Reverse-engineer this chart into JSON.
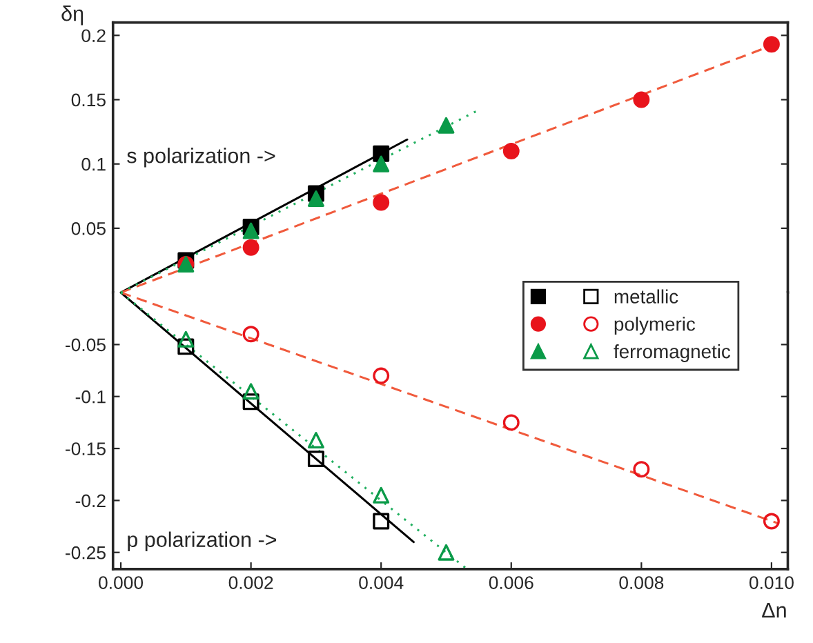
{
  "chart_data": [
    {
      "type": "scatter",
      "ylabel": "δη",
      "annotations": [
        "s polarization ->"
      ],
      "xlim": [
        -0.00012,
        0.01025
      ],
      "ylim": [
        0,
        0.21
      ],
      "yticks": [
        0.05,
        0.1,
        0.15,
        0.2
      ],
      "tick_labels": "y",
      "legend": "bottom right",
      "grid": false,
      "series": [
        {
          "name": "metallic",
          "marker": "square",
          "color": "#000000",
          "x": [
            0.001,
            0.002,
            0.003,
            0.004
          ],
          "values": [
            0.025,
            0.051,
            0.077,
            0.108
          ]
        },
        {
          "name": "polymeric",
          "marker": "circle",
          "color": "#e8141c",
          "x": [
            0.001,
            0.002,
            0.004,
            0.006,
            0.008,
            0.01
          ],
          "values": [
            0.022,
            0.035,
            0.07,
            0.11,
            0.15,
            0.193
          ]
        },
        {
          "name": "ferromagnetic",
          "marker": "triangle",
          "color": "#0a9a48",
          "x": [
            0.001,
            0.002,
            0.003,
            0.004,
            0.005
          ],
          "values": [
            0.022,
            0.048,
            0.073,
            0.1,
            0.13
          ]
        },
        {
          "type": "line",
          "line_style": "solid",
          "color": "#000000",
          "x": [
            0,
            0.0044
          ],
          "values": [
            0,
            0.119
          ]
        },
        {
          "type": "line",
          "line_style": "dashed",
          "color": "#f05a3c",
          "x": [
            0,
            0.0101
          ],
          "values": [
            0,
            0.194
          ]
        },
        {
          "type": "line",
          "line_style": "dotted",
          "color": "#22b060",
          "x": [
            0,
            0.0055
          ],
          "values": [
            0,
            0.142
          ]
        }
      ]
    },
    {
      "type": "scatter",
      "xlabel": "Δn",
      "annotations": [
        "p polarization ->"
      ],
      "xlim": [
        -0.00012,
        0.01025
      ],
      "ylim": [
        -0.266,
        0
      ],
      "xticks": [
        {
          "value": 0,
          "label": "0.000"
        },
        {
          "value": 0.002,
          "label": "0.002"
        },
        {
          "value": 0.004,
          "label": "0.004"
        },
        {
          "value": 0.006,
          "label": "0.006"
        },
        {
          "value": 0.008,
          "label": "0.008"
        },
        {
          "value": 0.01,
          "label": "0.010"
        }
      ],
      "yticks": [
        -0.05,
        -0.1,
        -0.15,
        -0.2,
        -0.25
      ],
      "grid": false,
      "series": [
        {
          "marker": "square",
          "color": "#000000",
          "x": [
            0.001,
            0.002,
            0.003,
            0.004
          ],
          "values": [
            -0.052,
            -0.105,
            -0.16,
            -0.22
          ]
        },
        {
          "marker": "circle",
          "color": "#e8141c",
          "x": [
            0.002,
            0.004,
            0.006,
            0.008,
            0.01
          ],
          "values": [
            -0.04,
            -0.08,
            -0.125,
            -0.17,
            -0.22
          ]
        },
        {
          "marker": "triangle",
          "color": "#0a9a48",
          "x": [
            0.001,
            0.002,
            0.003,
            0.004,
            0.005
          ],
          "values": [
            -0.045,
            -0.095,
            -0.142,
            -0.195,
            -0.25
          ]
        },
        {
          "type": "line",
          "line_style": "solid",
          "color": "#000000",
          "x": [
            0,
            0.0045
          ],
          "values": [
            0,
            -0.24
          ]
        },
        {
          "type": "line",
          "line_style": "dashed",
          "color": "#f05a3c",
          "x": [
            0,
            0.0101
          ],
          "values": [
            0,
            -0.222
          ]
        },
        {
          "type": "line",
          "line_style": "dotted",
          "color": "#22b060",
          "x": [
            0,
            0.0053
          ],
          "values": [
            0,
            -0.265
          ]
        }
      ]
    }
  ]
}
